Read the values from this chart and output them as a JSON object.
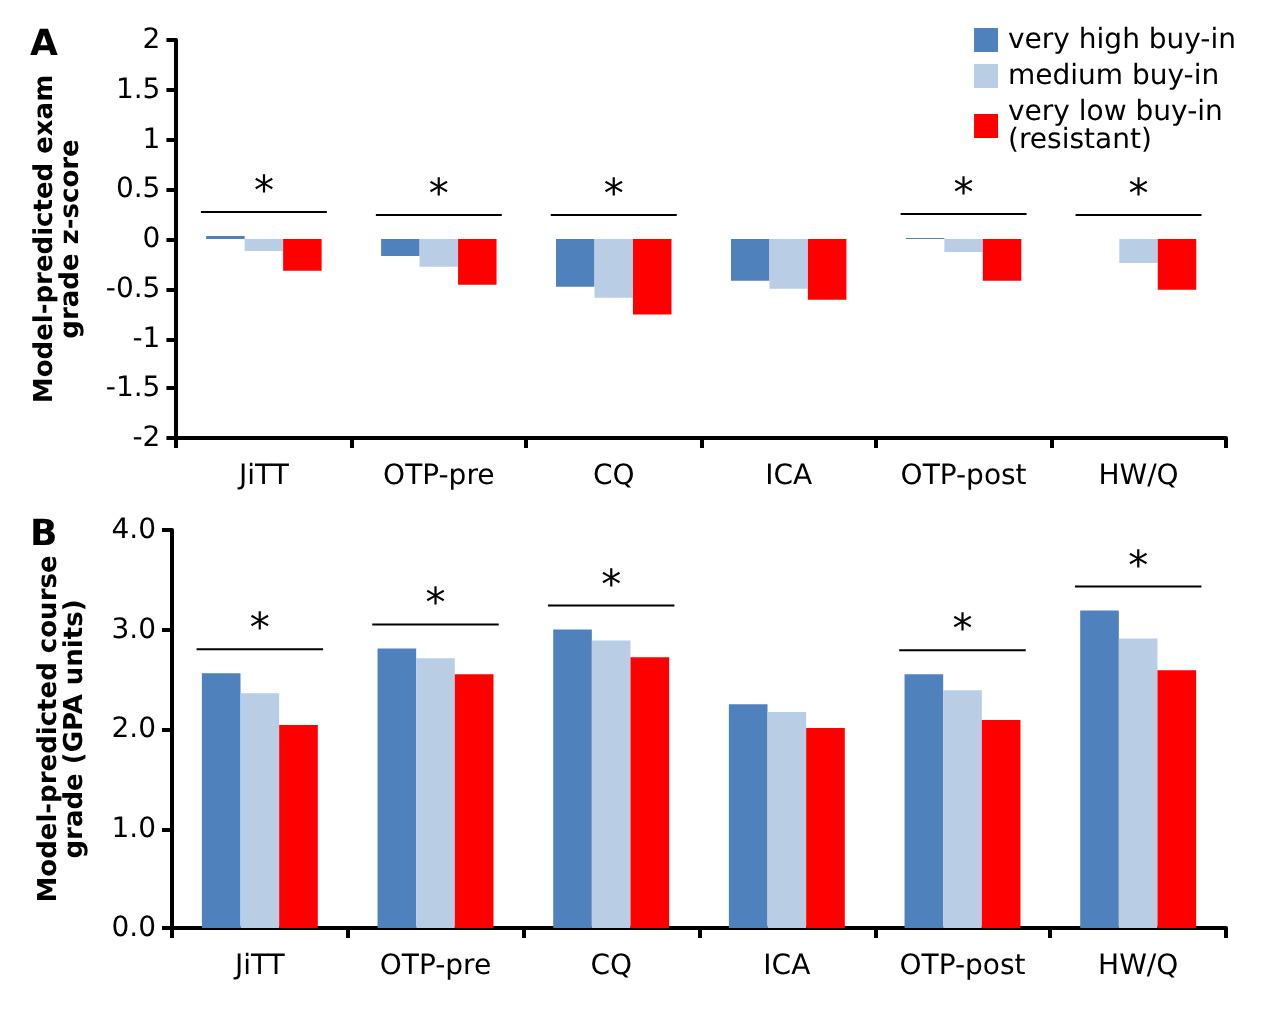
{
  "chart_data": [
    {
      "type": "bar",
      "title": "A",
      "ylabel": "Model-predicted exam\ngrade z-score",
      "categories": [
        "JiTT",
        "OTP-pre",
        "CQ",
        "ICA",
        "OTP-post",
        "HW/Q"
      ],
      "series": [
        {
          "name": "very high buy-in",
          "color": "#4f81bd",
          "values": [
            0.03,
            -0.17,
            -0.48,
            -0.42,
            0.01,
            0
          ]
        },
        {
          "name": "medium buy-in",
          "color": "#b9cde5",
          "values": [
            -0.12,
            -0.28,
            -0.59,
            -0.5,
            -0.13,
            -0.24
          ]
        },
        {
          "name": "very low buy-in\n(resistant)",
          "color": "#ff0000",
          "values": [
            -0.32,
            -0.46,
            -0.76,
            -0.61,
            -0.42,
            -0.51
          ]
        }
      ],
      "ylim": [
        -2,
        2
      ],
      "yticks": [
        -2,
        -1.5,
        -1,
        -0.5,
        0,
        0.5,
        1,
        1.5,
        2
      ],
      "grid": false,
      "legend": "top right",
      "annotations": [
        "*",
        "*",
        "*",
        "*",
        "*"
      ]
    },
    {
      "type": "bar",
      "title": "B",
      "ylabel": "Model-predicted course\ngrade (GPA units)",
      "categories": [
        "JiTT",
        "OTP-pre",
        "CQ",
        "ICA",
        "OTP-post",
        "HW/Q"
      ],
      "series": [
        {
          "color": "#4f81bd",
          "values": [
            2.56,
            2.81,
            3.0,
            2.25,
            2.55,
            3.19
          ]
        },
        {
          "color": "#b9cde5",
          "values": [
            2.36,
            2.71,
            2.89,
            2.17,
            2.39,
            2.91
          ]
        },
        {
          "color": "#ff0000",
          "values": [
            2.04,
            2.55,
            2.72,
            2.01,
            2.09,
            2.59
          ]
        }
      ],
      "ylim": [
        0,
        4
      ],
      "yticks": [
        {
          "value": 0,
          "label": "0.0"
        },
        {
          "value": 1,
          "label": "1.0"
        },
        {
          "value": 2,
          "label": "2.0"
        },
        {
          "value": 3,
          "label": "3.0"
        },
        {
          "value": 4,
          "label": "4.0"
        }
      ],
      "grid": false,
      "legend": false,
      "annotations": [
        "*",
        "*",
        "*",
        "*",
        "*"
      ]
    }
  ]
}
